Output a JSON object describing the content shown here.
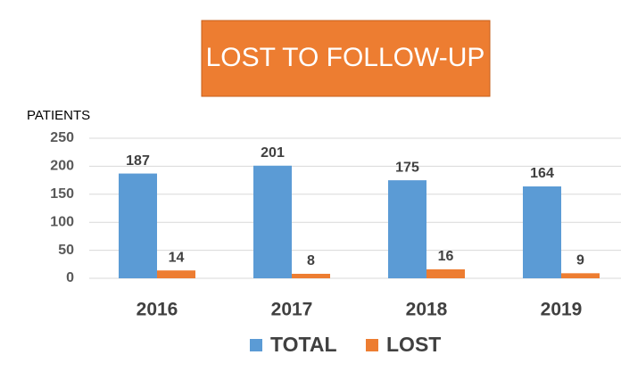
{
  "chart_data": {
    "type": "bar",
    "title": "LOST TO FOLLOW-UP",
    "y_label": "PATIENTS",
    "categories": [
      "2016",
      "2017",
      "2018",
      "2019"
    ],
    "series": [
      {
        "name": "TOTAL",
        "color": "#5b9bd5",
        "values": [
          187,
          201,
          175,
          164
        ]
      },
      {
        "name": "LOST",
        "color": "#ed7d31",
        "values": [
          14,
          8,
          16,
          9
        ]
      }
    ],
    "ylim": [
      0,
      250
    ],
    "yticks": [
      0,
      50,
      100,
      150,
      200,
      250
    ],
    "grid": true,
    "legend": "bottom"
  }
}
